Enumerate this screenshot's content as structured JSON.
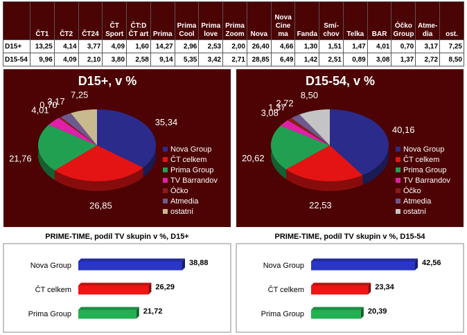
{
  "table": {
    "columns": [
      "ČT1",
      "ČT2",
      "ČT24",
      "ČT\nSport",
      "ČT:D\nČT art",
      "Prima",
      "Prima\nCool",
      "Prima\nlove",
      "Prima\nZoom",
      "Nova",
      "Nova\nCine\nma",
      "Fanda",
      "Smí-\nchov",
      "Telka",
      "BAR",
      "Óčko\nGroup",
      "Atme-\ndia",
      "ost."
    ],
    "rows": [
      {
        "label": "D15+",
        "cells": [
          "13,25",
          "4,14",
          "3,77",
          "4,09",
          "1,60",
          "14,27",
          "2,96",
          "2,53",
          "2,00",
          "26,40",
          "4,66",
          "1,30",
          "1,51",
          "1,47",
          "4,01",
          "0,70",
          "3,17",
          "7,25"
        ]
      },
      {
        "label": "D15-54",
        "cells": [
          "9,96",
          "4,09",
          "2,10",
          "3,80",
          "2,58",
          "9,14",
          "5,35",
          "3,42",
          "2,71",
          "28,85",
          "6,49",
          "1,42",
          "2,51",
          "0,89",
          "3,08",
          "1,37",
          "2,72",
          "8,50"
        ]
      }
    ]
  },
  "chart_data": [
    {
      "type": "pie",
      "title": "D15+, v %",
      "categories": [
        "Nova Group",
        "ČT celkem",
        "Prima Group",
        "TV Barrandov",
        "Óčko",
        "Atmedia",
        "ostatní"
      ],
      "values": [
        35.34,
        26.85,
        21.76,
        4.01,
        0.7,
        3.17,
        7.25
      ],
      "value_labels": [
        "35,34",
        "26,85",
        "21,76",
        "4,01",
        "0,70",
        "3,17",
        "7,25"
      ],
      "colors": [
        "#2b2b8c",
        "#e41414",
        "#22a052",
        "#e020a8",
        "#8a1c1c",
        "#6c5a8e",
        "#c9b98e"
      ]
    },
    {
      "type": "pie",
      "title": "D15-54, v %",
      "categories": [
        "Nova Group",
        "ČT celkem",
        "Prima Group",
        "TV Barrandov",
        "Óčko",
        "Atmedia",
        "ostatní"
      ],
      "values": [
        40.16,
        22.53,
        20.62,
        3.08,
        1.37,
        2.72,
        8.5
      ],
      "value_labels": [
        "40,16",
        "22,53",
        "20,62",
        "3,08",
        "1,37",
        "2,72",
        "8,50"
      ],
      "colors": [
        "#2b2b8c",
        "#e41414",
        "#22a052",
        "#e020a8",
        "#8a1c1c",
        "#6c5a8e",
        "#c4c4c4"
      ]
    },
    {
      "type": "bar",
      "orientation": "horizontal",
      "title": "PRIME-TIME, podíl TV skupin v %, D15+",
      "categories": [
        "Nova Group",
        "ČT celkem",
        "Prima Group"
      ],
      "values": [
        38.88,
        26.29,
        21.72
      ],
      "value_labels": [
        "38,88",
        "26,29",
        "21,72"
      ],
      "colors": [
        "#2a36c4",
        "#f01414",
        "#22b052"
      ]
    },
    {
      "type": "bar",
      "orientation": "horizontal",
      "title": "PRIME-TIME, podíl TV skupin v %, D15-54",
      "categories": [
        "Nova Group",
        "ČT celkem",
        "Prima Group"
      ],
      "values": [
        42.56,
        23.34,
        20.39
      ],
      "value_labels": [
        "42,56",
        "23,34",
        "20,39"
      ],
      "colors": [
        "#2a36c4",
        "#f01414",
        "#22b052"
      ]
    }
  ]
}
